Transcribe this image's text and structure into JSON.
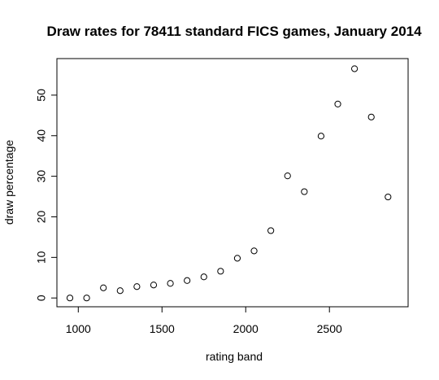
{
  "chart_data": {
    "type": "scatter",
    "title": "Draw rates for 78411 standard FICS games, January 2014",
    "xlabel": "rating band",
    "ylabel": "draw percentage",
    "xlim": [
      900,
      2900
    ],
    "ylim": [
      0,
      57
    ],
    "xticks": [
      1000,
      1500,
      2000,
      2500
    ],
    "yticks": [
      0,
      10,
      20,
      30,
      40,
      50
    ],
    "grid": false,
    "legend": "none",
    "point_style": "open-circle",
    "x": [
      950,
      1050,
      1150,
      1250,
      1350,
      1450,
      1550,
      1650,
      1750,
      1850,
      1950,
      2050,
      2150,
      2250,
      2350,
      2450,
      2550,
      2650,
      2750,
      2850
    ],
    "y": [
      0.0,
      0.0,
      2.5,
      1.8,
      2.8,
      3.2,
      3.6,
      4.3,
      5.2,
      6.6,
      9.8,
      11.6,
      16.6,
      30.1,
      26.2,
      39.9,
      47.8,
      56.5,
      44.6,
      24.9
    ]
  }
}
